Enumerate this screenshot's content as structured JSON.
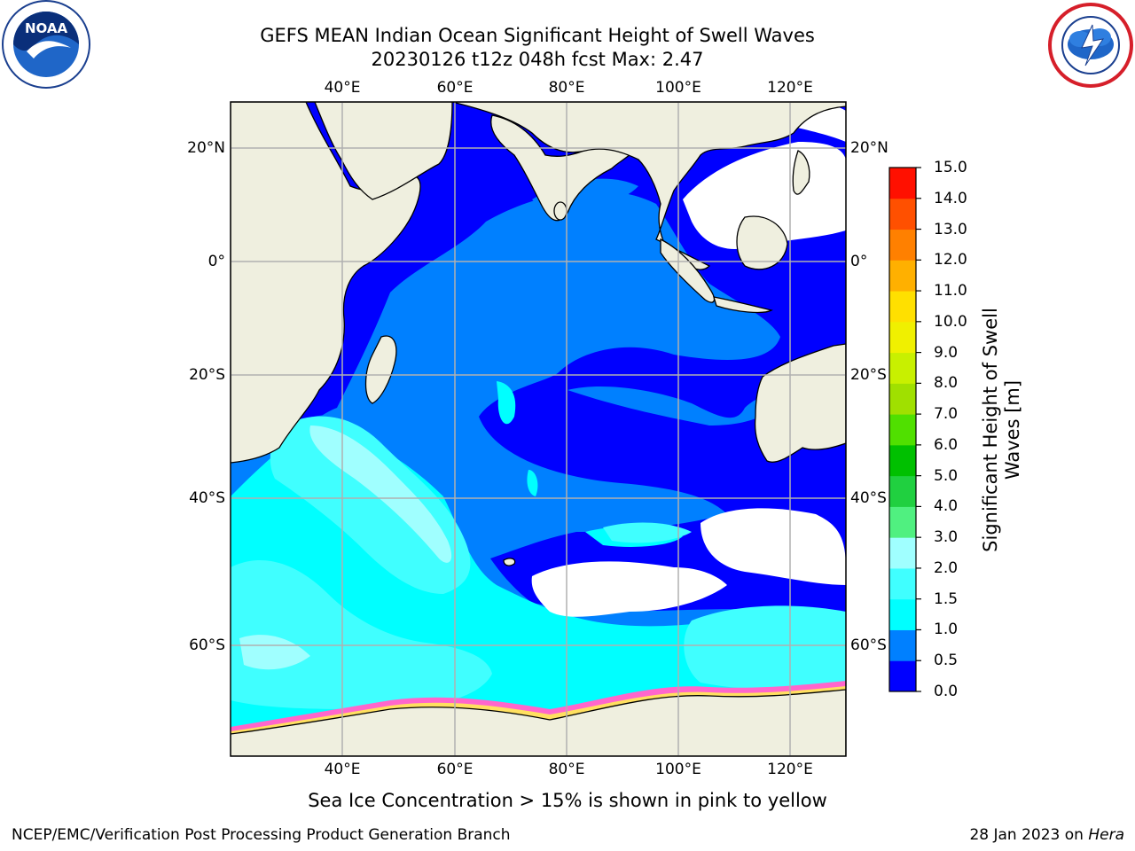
{
  "header": {
    "title_line1": "GEFS MEAN Indian Ocean Significant Height of Swell Waves",
    "title_line2": "20230126 t12z 048h fcst   Max: 2.47"
  },
  "logos": {
    "left": {
      "icon": "noaa-logo",
      "text": "NOAA"
    },
    "right": {
      "icon": "national-weather-service-logo"
    }
  },
  "map": {
    "type": "filled-contour-map",
    "region": "Indian Ocean",
    "lon_range": [
      20,
      129
    ],
    "lat_range": [
      -74,
      27
    ],
    "grid": true,
    "lon_ticks_top": [
      "40°E",
      "60°E",
      "80°E",
      "100°E",
      "120°E"
    ],
    "lon_ticks_bottom": [
      "40°E",
      "60°E",
      "80°E",
      "100°E",
      "120°E"
    ],
    "lat_ticks_left": [
      "20°N",
      "0°",
      "20°S",
      "40°S",
      "60°S"
    ],
    "lat_ticks_right": [
      "20°N",
      "0°",
      "20°S",
      "40°S",
      "60°S"
    ],
    "land_color": "#efefdf",
    "ocean_color": "#0000ff"
  },
  "colorbar": {
    "label": "Significant Height of Swell Waves [m]",
    "levels": [
      "0.0",
      "0.5",
      "1.0",
      "1.5",
      "2.0",
      "3.0",
      "4.0",
      "5.0",
      "6.0",
      "7.0",
      "8.0",
      "9.0",
      "10.0",
      "11.0",
      "12.0",
      "13.0",
      "14.0",
      "15.0"
    ],
    "colors": [
      "#0000ff",
      "#0080ff",
      "#00ffff",
      "#40ffff",
      "#a0ffff",
      "#50f080",
      "#20d040",
      "#00c000",
      "#50e000",
      "#a0e000",
      "#c8f000",
      "#f0f000",
      "#ffe000",
      "#ffb000",
      "#ff8000",
      "#ff5000",
      "#ff1000"
    ]
  },
  "caption": "Sea Ice Concentration > 15% is shown in pink to yellow",
  "footer": {
    "left": "NCEP/EMC/Verification Post Processing Product Generation Branch",
    "right_prefix": "28 Jan 2023 on ",
    "right_machine": "Hera"
  }
}
